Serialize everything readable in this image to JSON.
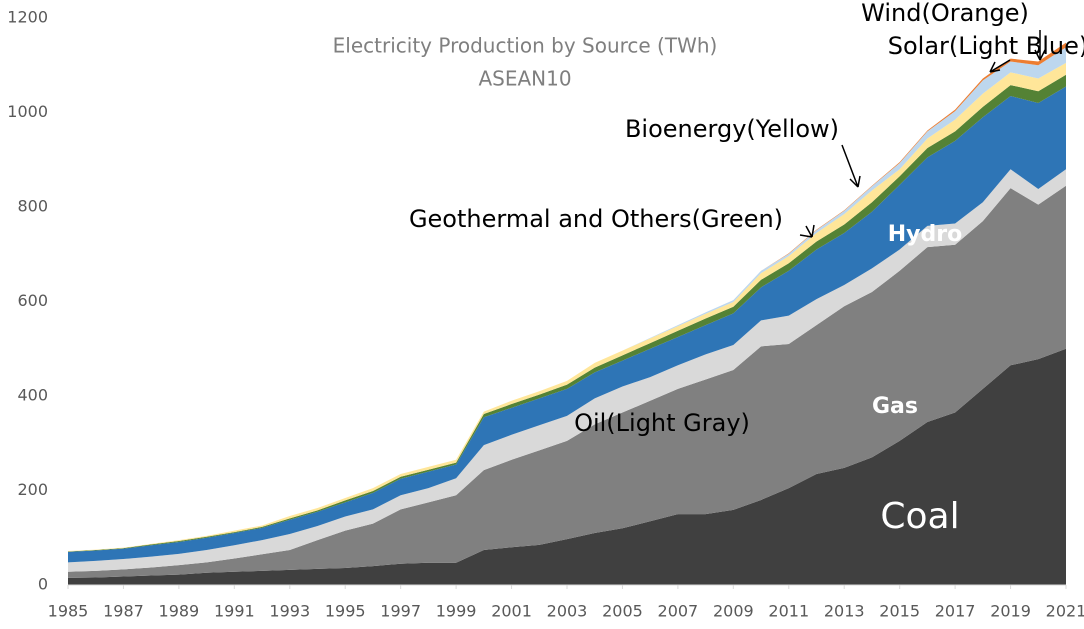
{
  "chart_data": {
    "type": "stacked_area",
    "subtitle": [
      "Electricity Production by Source (TWh)",
      "ASEAN10"
    ],
    "x": [
      1985,
      1986,
      1987,
      1988,
      1989,
      1990,
      1991,
      1992,
      1993,
      1994,
      1995,
      1996,
      1997,
      1998,
      1999,
      2000,
      2001,
      2002,
      2003,
      2004,
      2005,
      2006,
      2007,
      2008,
      2009,
      2010,
      2011,
      2012,
      2013,
      2014,
      2015,
      2016,
      2017,
      2018,
      2019,
      2020,
      2021
    ],
    "xlim": [
      1985,
      2021
    ],
    "xticks": [
      1985,
      1987,
      1989,
      1991,
      1993,
      1995,
      1997,
      1999,
      2001,
      2003,
      2005,
      2007,
      2009,
      2011,
      2013,
      2015,
      2017,
      2019,
      2021
    ],
    "ylim": [
      0,
      1200
    ],
    "yticks": [
      0,
      200,
      400,
      600,
      800,
      1000,
      1200
    ],
    "grid": false,
    "series": [
      {
        "name": "Coal",
        "color": "#404040",
        "values": [
          15,
          16,
          18,
          20,
          22,
          26,
          28,
          30,
          32,
          34,
          36,
          40,
          45,
          47,
          47,
          74,
          80,
          85,
          97,
          110,
          120,
          135,
          150,
          150,
          159,
          180,
          205,
          235,
          248,
          270,
          305,
          345,
          365,
          415,
          465,
          478,
          500
        ]
      },
      {
        "name": "Gas",
        "color": "#808080",
        "values": [
          13,
          14,
          15,
          17,
          20,
          22,
          28,
          35,
          42,
          61,
          79,
          90,
          115,
          128,
          143,
          169,
          185,
          200,
          208,
          230,
          245,
          255,
          265,
          285,
          296,
          325,
          305,
          315,
          342,
          350,
          360,
          370,
          355,
          355,
          375,
          327,
          345
        ]
      },
      {
        "name": "Oil(Light Gray)",
        "color": "#d9d9d9",
        "values": [
          20,
          21,
          22,
          23,
          24,
          26,
          28,
          30,
          34,
          30,
          30,
          30,
          30,
          30,
          36,
          53,
          53,
          53,
          53,
          55,
          55,
          50,
          50,
          53,
          53,
          55,
          60,
          55,
          45,
          50,
          45,
          45,
          45,
          40,
          40,
          33,
          35
        ]
      },
      {
        "name": "Hydro",
        "color": "#2e75b6",
        "values": [
          22,
          22,
          22,
          24,
          25,
          26,
          26,
          26,
          30,
          30,
          30,
          35,
          35,
          35,
          29,
          59,
          57,
          57,
          57,
          55,
          55,
          60,
          60,
          62,
          67,
          70,
          95,
          105,
          110,
          120,
          137,
          145,
          175,
          180,
          155,
          182,
          175
        ]
      },
      {
        "name": "Geothermal and Others(Green)",
        "color": "#548235",
        "values": [
          1,
          1,
          1,
          2,
          2,
          2,
          2,
          2,
          3,
          3,
          4,
          4,
          4,
          4,
          4,
          7,
          8,
          8,
          9,
          10,
          11,
          12,
          13,
          14,
          14,
          16,
          16,
          17,
          18,
          20,
          18,
          20,
          20,
          22,
          23,
          25,
          25
        ]
      },
      {
        "name": "Bioenergy(Yellow)",
        "color": "#ffe699",
        "values": [
          1,
          1,
          1,
          1,
          2,
          2,
          3,
          3,
          5,
          5,
          5,
          6,
          6,
          6,
          6,
          5,
          7,
          7,
          8,
          10,
          10,
          10,
          10,
          10,
          10,
          14,
          15,
          18,
          22,
          25,
          15,
          20,
          25,
          28,
          27,
          27,
          25
        ]
      },
      {
        "name": "Solar(Light Blue)",
        "color": "#bdd7ee",
        "values": [
          0,
          0,
          0,
          0,
          0,
          0,
          0,
          0,
          0,
          0,
          0,
          0,
          0,
          0,
          0,
          0,
          0,
          0,
          0,
          0,
          0,
          1,
          2,
          3,
          4,
          5,
          5,
          6,
          7,
          9,
          13,
          15,
          18,
          28,
          23,
          28,
          33
        ]
      },
      {
        "name": "Wind(Orange)",
        "color": "#ed7d31",
        "values": [
          0,
          0,
          0,
          0,
          0,
          0,
          0,
          0,
          0,
          0,
          0,
          0,
          0,
          0,
          0,
          0,
          0,
          0,
          0,
          0,
          0,
          0,
          0,
          0,
          0,
          0,
          1,
          1,
          1,
          1,
          2,
          2,
          3,
          4,
          6,
          8,
          10
        ]
      }
    ]
  }
}
